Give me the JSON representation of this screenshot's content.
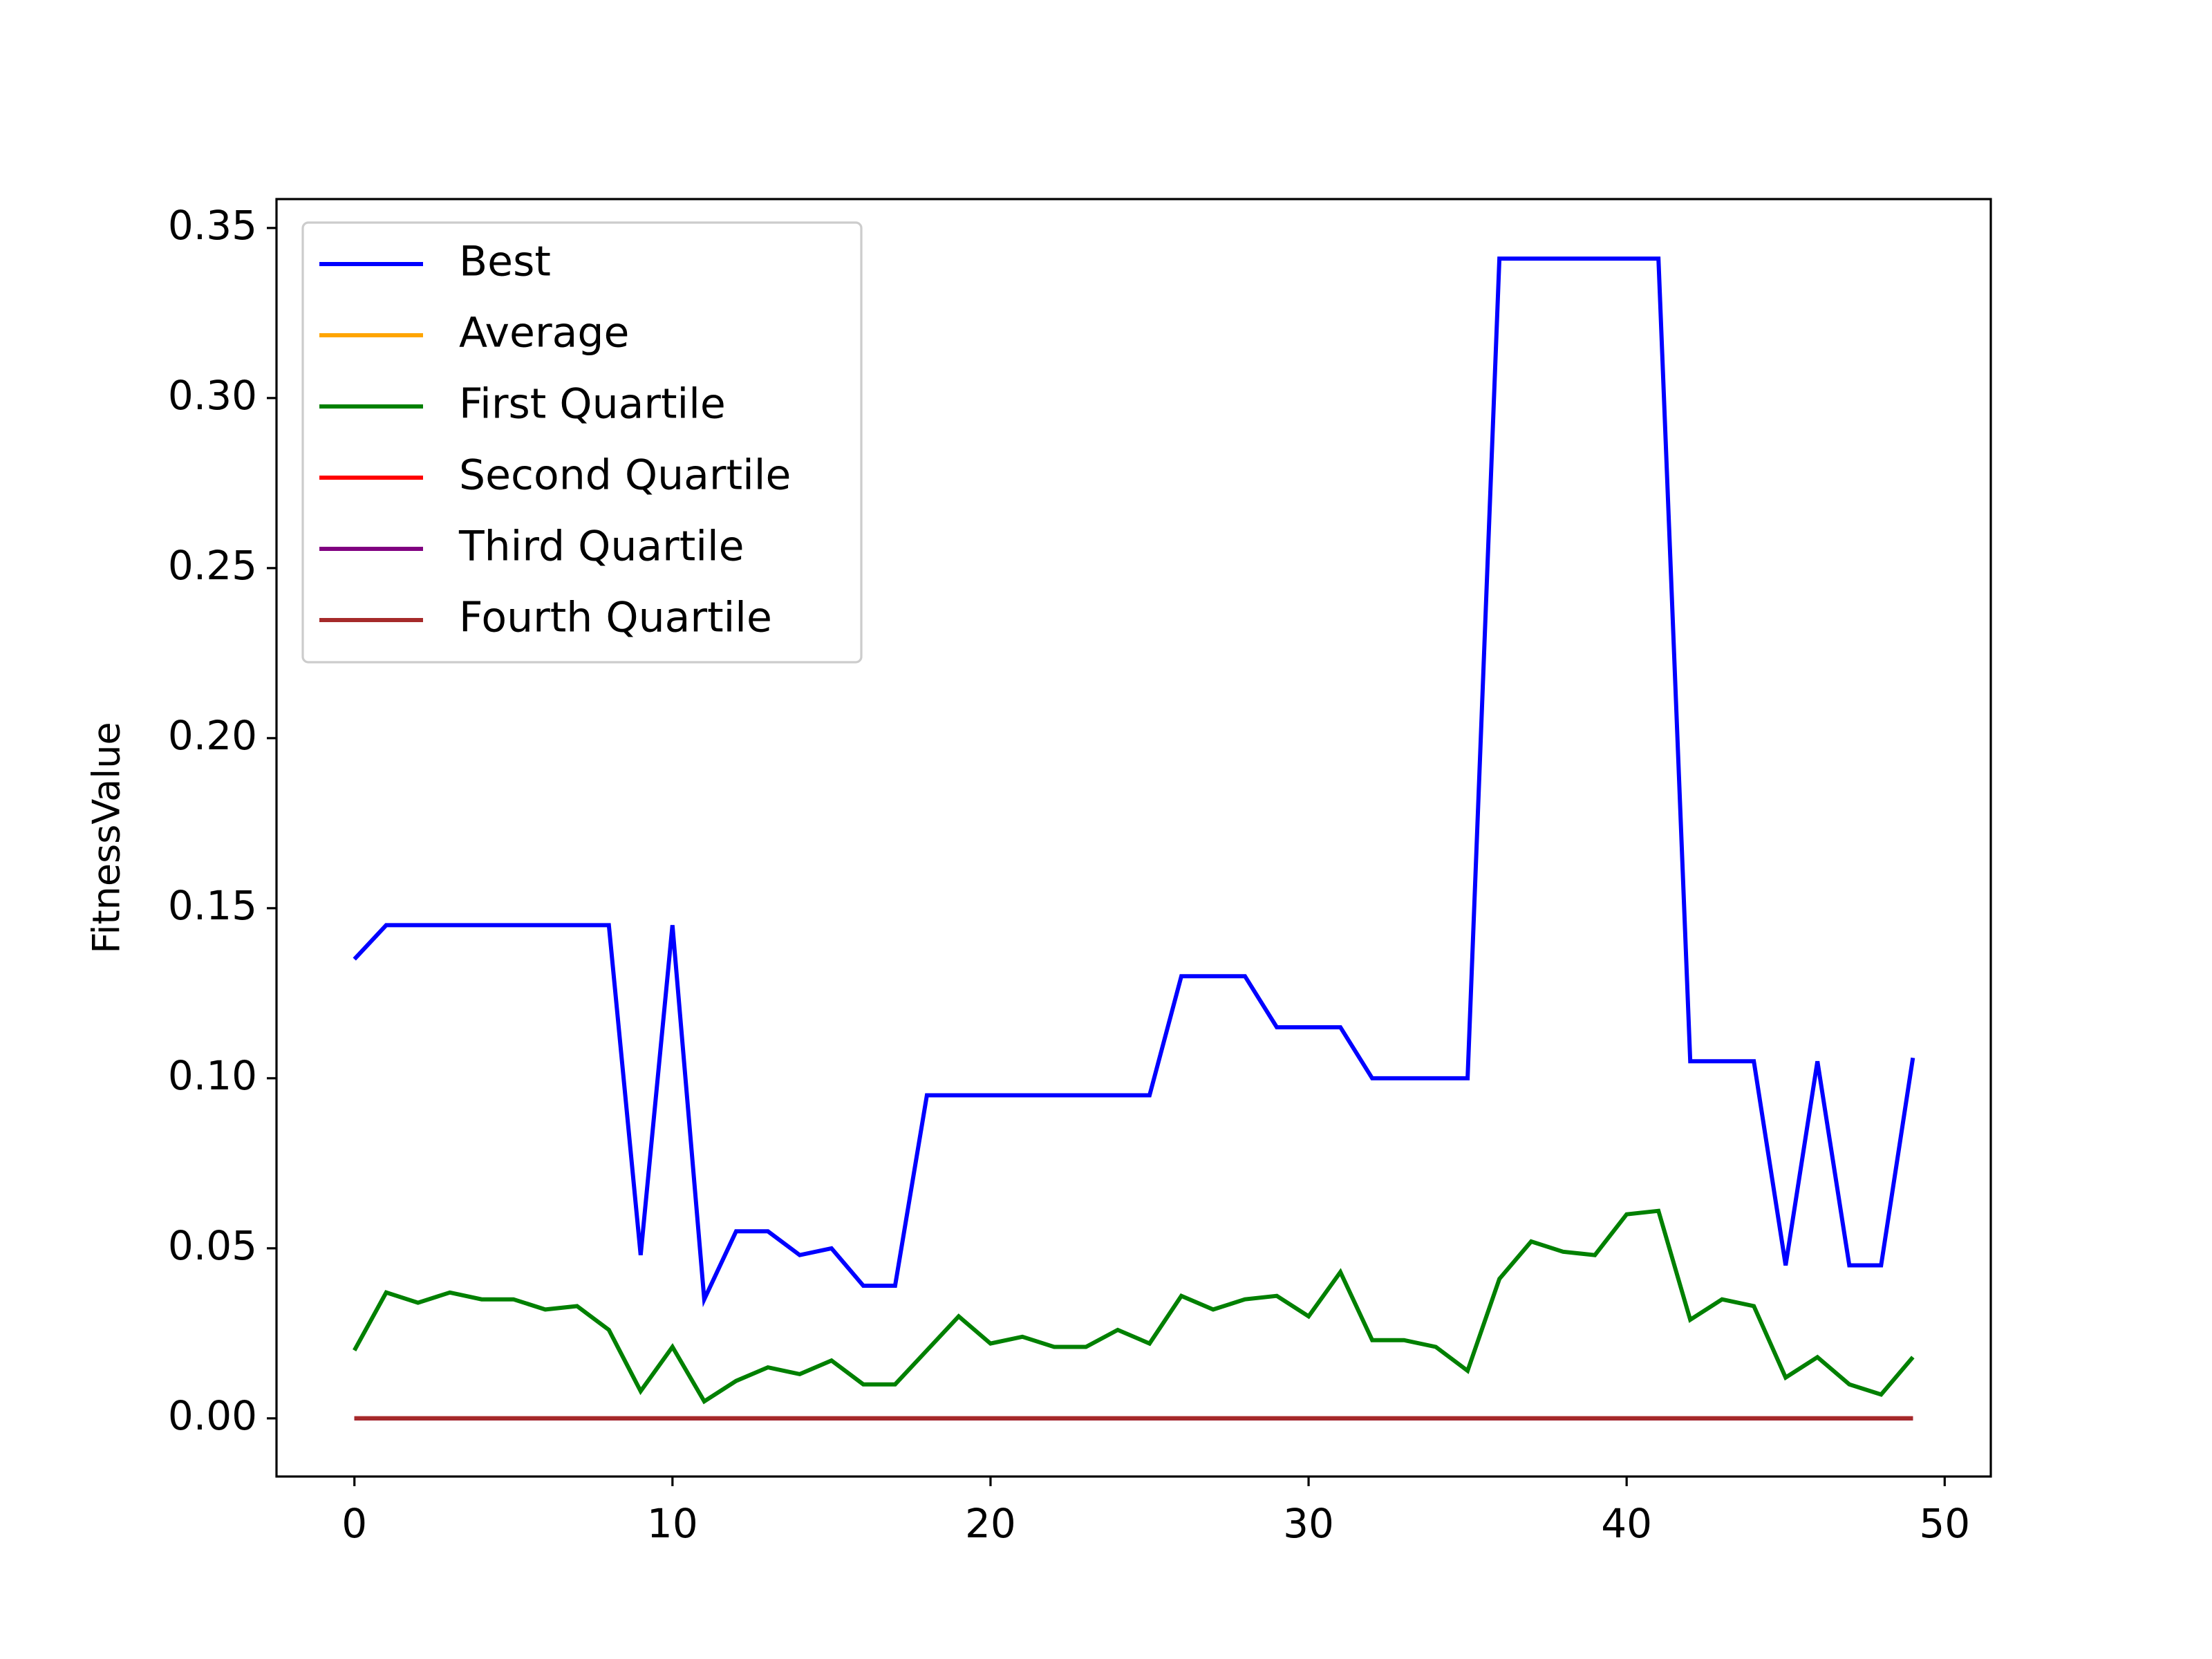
{
  "chart_data": {
    "type": "line",
    "title": "",
    "xlabel": "",
    "ylabel": "FitnessValue",
    "xlim": [
      -2.45,
      51.45
    ],
    "ylim": [
      -0.0171,
      0.3585
    ],
    "x_ticks": [
      0,
      10,
      20,
      30,
      40,
      50
    ],
    "y_ticks": [
      0.0,
      0.05,
      0.1,
      0.15,
      0.2,
      0.25,
      0.3,
      0.35
    ],
    "y_tick_labels": [
      "0.00",
      "0.05",
      "0.10",
      "0.15",
      "0.20",
      "0.25",
      "0.30",
      "0.35"
    ],
    "grid": false,
    "legend_position": "top-left",
    "x": [
      0,
      1,
      2,
      3,
      4,
      5,
      6,
      7,
      8,
      9,
      10,
      11,
      12,
      13,
      14,
      15,
      16,
      17,
      18,
      19,
      20,
      21,
      22,
      23,
      24,
      25,
      26,
      27,
      28,
      29,
      30,
      31,
      32,
      33,
      34,
      35,
      36,
      37,
      38,
      39,
      40,
      41,
      42,
      43,
      44,
      45,
      46,
      47,
      48,
      49
    ],
    "series": [
      {
        "name": "Best",
        "color": "#0000ff",
        "values": [
          0.135,
          0.145,
          0.145,
          0.145,
          0.145,
          0.145,
          0.145,
          0.145,
          0.145,
          0.048,
          0.145,
          0.035,
          0.055,
          0.055,
          0.048,
          0.05,
          0.039,
          0.039,
          0.095,
          0.095,
          0.095,
          0.095,
          0.095,
          0.095,
          0.095,
          0.095,
          0.13,
          0.13,
          0.13,
          0.115,
          0.115,
          0.115,
          0.1,
          0.1,
          0.1,
          0.1,
          0.341,
          0.341,
          0.341,
          0.341,
          0.341,
          0.341,
          0.105,
          0.105,
          0.105,
          0.045,
          0.105,
          0.045,
          0.045,
          0.106
        ]
      },
      {
        "name": "Average",
        "color": "#ffa500",
        "values": [
          0,
          0,
          0,
          0,
          0,
          0,
          0,
          0,
          0,
          0,
          0,
          0,
          0,
          0,
          0,
          0,
          0,
          0,
          0,
          0,
          0,
          0,
          0,
          0,
          0,
          0,
          0,
          0,
          0,
          0,
          0,
          0,
          0,
          0,
          0,
          0,
          0,
          0,
          0,
          0,
          0,
          0,
          0,
          0,
          0,
          0,
          0,
          0,
          0,
          0
        ]
      },
      {
        "name": "First Quartile",
        "color": "#008000",
        "values": [
          0.02,
          0.037,
          0.034,
          0.037,
          0.035,
          0.035,
          0.032,
          0.033,
          0.026,
          0.008,
          0.021,
          0.005,
          0.011,
          0.015,
          0.013,
          0.017,
          0.01,
          0.01,
          0.02,
          0.03,
          0.022,
          0.024,
          0.021,
          0.021,
          0.026,
          0.022,
          0.036,
          0.032,
          0.035,
          0.036,
          0.03,
          0.043,
          0.023,
          0.023,
          0.021,
          0.014,
          0.041,
          0.052,
          0.049,
          0.048,
          0.06,
          0.061,
          0.029,
          0.035,
          0.033,
          0.012,
          0.018,
          0.01,
          0.007,
          0.018
        ]
      },
      {
        "name": "Second Quartile",
        "color": "#ff0000",
        "values": [
          0,
          0,
          0,
          0,
          0,
          0,
          0,
          0,
          0,
          0,
          0,
          0,
          0,
          0,
          0,
          0,
          0,
          0,
          0,
          0,
          0,
          0,
          0,
          0,
          0,
          0,
          0,
          0,
          0,
          0,
          0,
          0,
          0,
          0,
          0,
          0,
          0,
          0,
          0,
          0,
          0,
          0,
          0,
          0,
          0,
          0,
          0,
          0,
          0,
          0
        ]
      },
      {
        "name": "Third Quartile",
        "color": "#800080",
        "values": [
          0,
          0,
          0,
          0,
          0,
          0,
          0,
          0,
          0,
          0,
          0,
          0,
          0,
          0,
          0,
          0,
          0,
          0,
          0,
          0,
          0,
          0,
          0,
          0,
          0,
          0,
          0,
          0,
          0,
          0,
          0,
          0,
          0,
          0,
          0,
          0,
          0,
          0,
          0,
          0,
          0,
          0,
          0,
          0,
          0,
          0,
          0,
          0,
          0,
          0
        ]
      },
      {
        "name": "Fourth Quartile",
        "color": "#a52a2a",
        "values": [
          0,
          0,
          0,
          0,
          0,
          0,
          0,
          0,
          0,
          0,
          0,
          0,
          0,
          0,
          0,
          0,
          0,
          0,
          0,
          0,
          0,
          0,
          0,
          0,
          0,
          0,
          0,
          0,
          0,
          0,
          0,
          0,
          0,
          0,
          0,
          0,
          0,
          0,
          0,
          0,
          0,
          0,
          0,
          0,
          0,
          0,
          0,
          0,
          0,
          0
        ]
      }
    ]
  }
}
